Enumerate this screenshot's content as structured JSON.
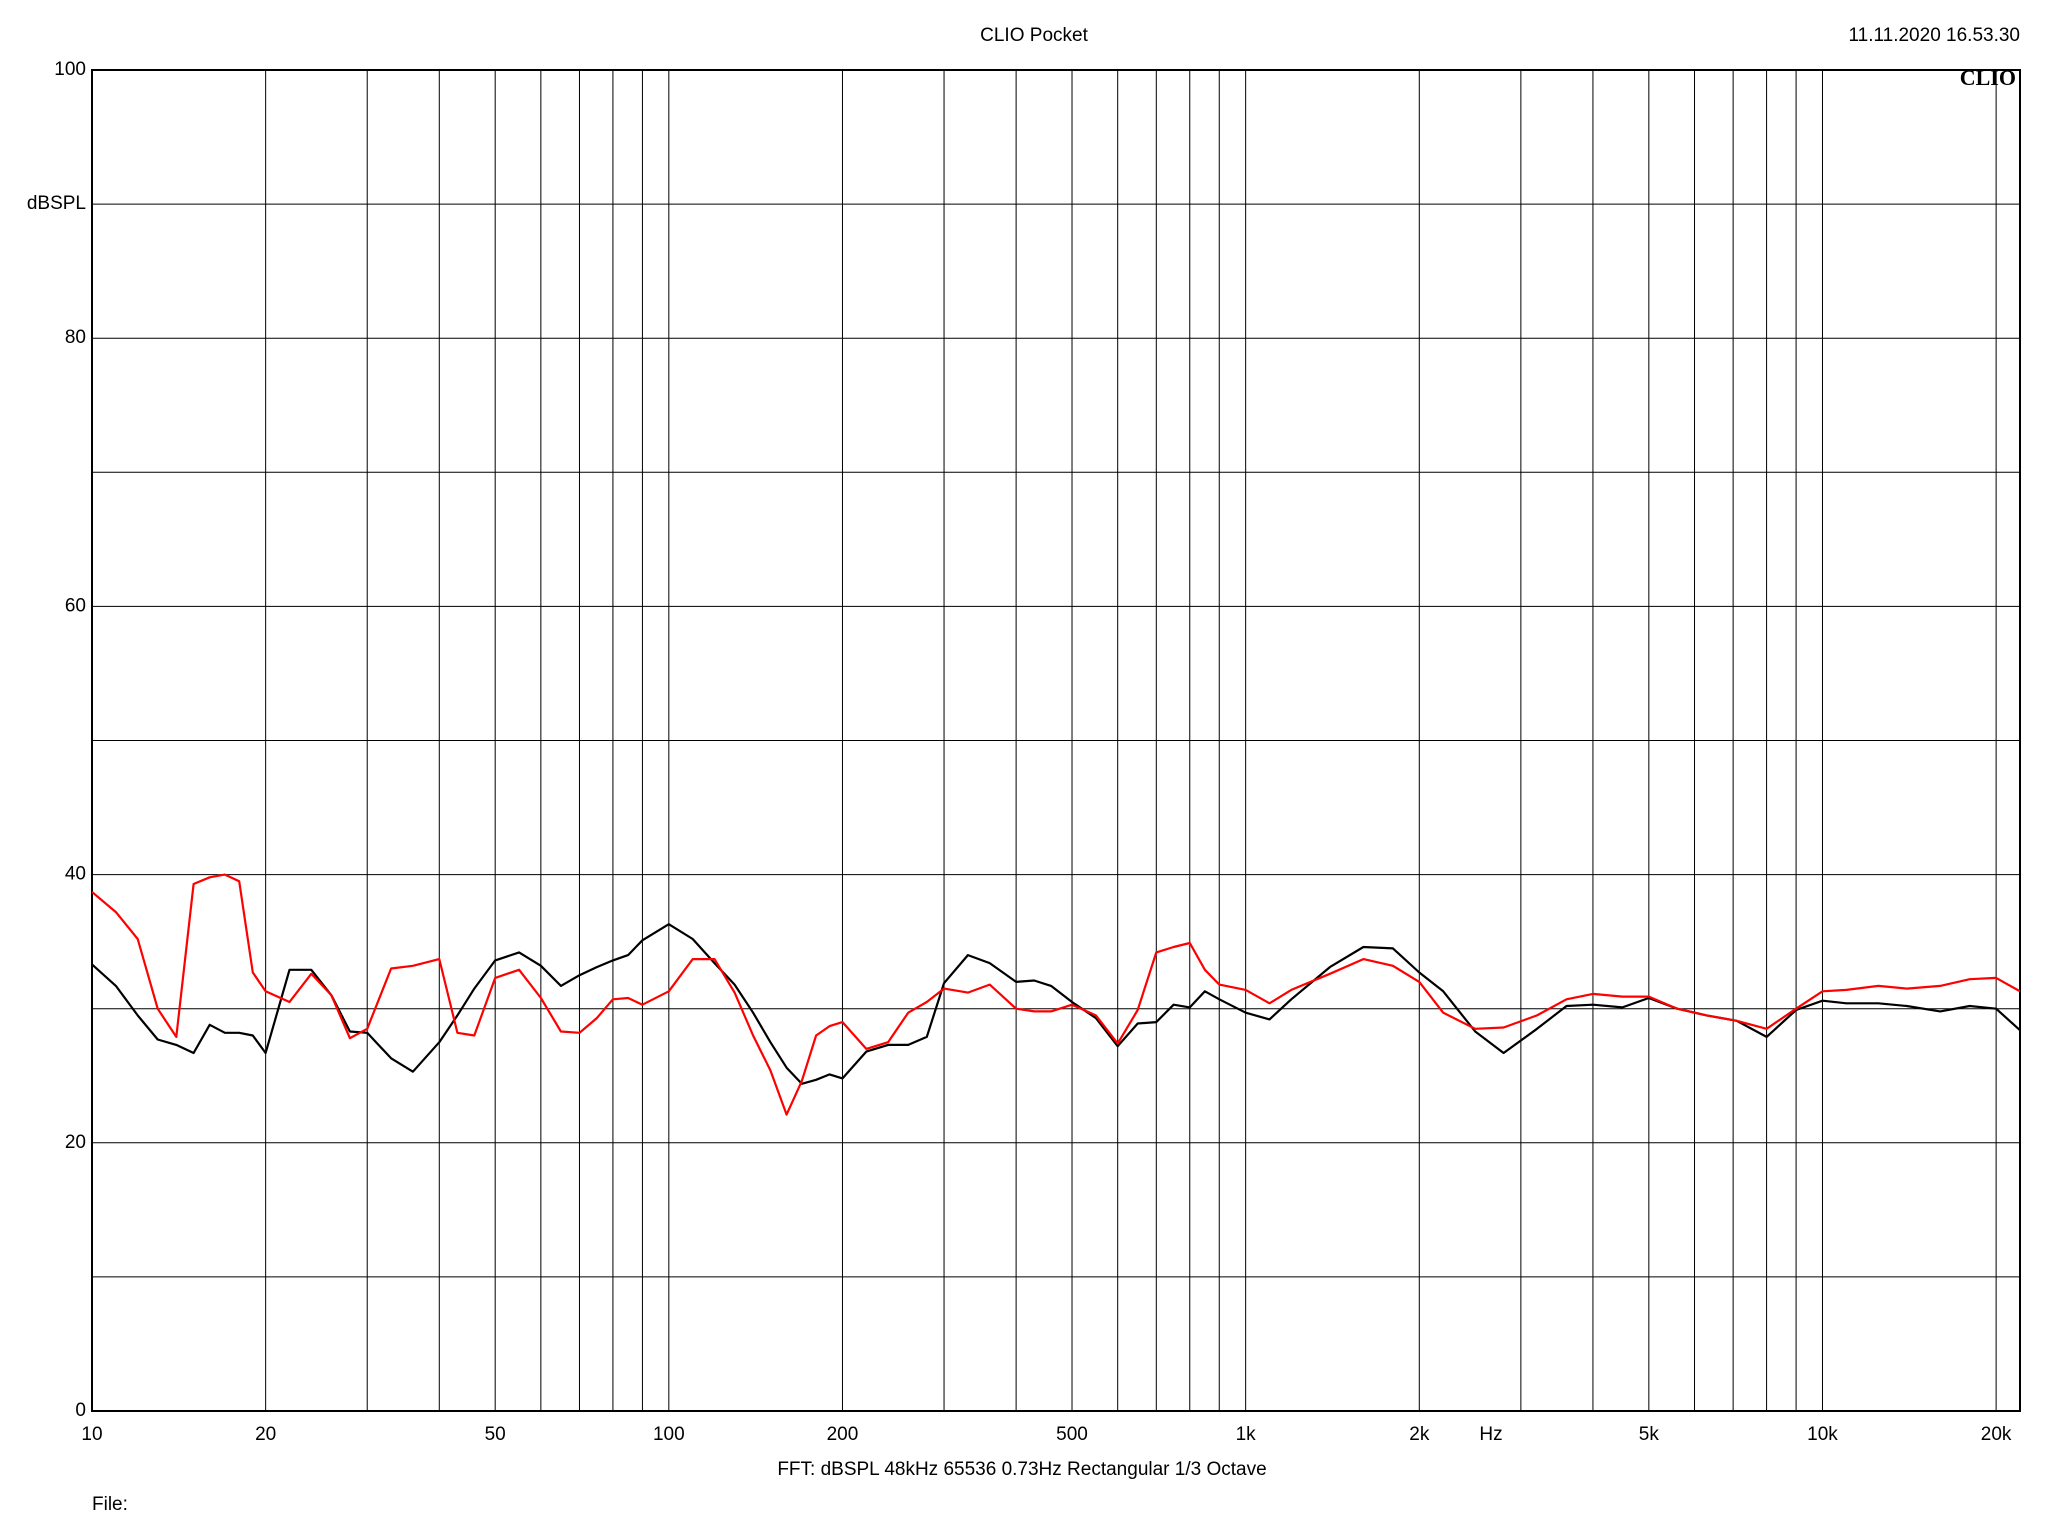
{
  "chart_data": {
    "type": "line",
    "title": "CLIO Pocket",
    "timestamp": "11.11.2020 16.53.30",
    "logo": "CLIO",
    "y_label": "dBSPL",
    "x_label": "Hz",
    "footer": "FFT:  dBSPL  48kHz  65536  0.73Hz  Rectangular  1/3 Octave",
    "file_label": "File:",
    "log_x": true,
    "grid": true,
    "xlim": [
      10,
      22000
    ],
    "ylim": [
      0,
      100
    ],
    "xticks": [
      10,
      20,
      50,
      100,
      200,
      500,
      {
        "value": 1000,
        "label": "1k"
      },
      {
        "value": 2000,
        "label": "2k"
      },
      {
        "value": 5000,
        "label": "5k"
      },
      {
        "value": 10000,
        "label": "10k"
      },
      {
        "value": 20000,
        "label": "20k"
      }
    ],
    "xminor": [
      30,
      40,
      60,
      70,
      80,
      90,
      300,
      400,
      600,
      700,
      800,
      900,
      3000,
      4000,
      6000,
      7000,
      8000,
      9000
    ],
    "yticks": [
      0,
      20,
      40,
      60,
      80,
      100
    ],
    "yminor": [
      10,
      30,
      50,
      70,
      90
    ],
    "x": [
      10,
      11,
      12,
      13,
      14,
      15,
      16,
      17,
      18,
      19,
      20,
      22,
      24,
      26,
      28,
      30,
      33,
      36,
      40,
      43,
      46,
      50,
      55,
      60,
      65,
      70,
      75,
      80,
      85,
      90,
      100,
      110,
      120,
      130,
      140,
      150,
      160,
      170,
      180,
      190,
      200,
      220,
      240,
      260,
      280,
      300,
      330,
      360,
      400,
      430,
      460,
      500,
      550,
      600,
      650,
      700,
      750,
      800,
      850,
      900,
      1000,
      1100,
      1200,
      1400,
      1600,
      1800,
      2000,
      2200,
      2500,
      2800,
      3200,
      3600,
      4000,
      4500,
      5000,
      5600,
      6300,
      7100,
      8000,
      9000,
      10000,
      11000,
      12500,
      14000,
      16000,
      18000,
      20000,
      22000
    ],
    "series": [
      {
        "color": "#000000",
        "values": [
          33.3,
          31.7,
          29.5,
          27.7,
          27.3,
          26.7,
          28.8,
          28.2,
          28.2,
          28.0,
          26.7,
          32.9,
          32.9,
          31.0,
          28.3,
          28.2,
          26.3,
          25.3,
          27.5,
          29.5,
          31.5,
          33.6,
          34.2,
          33.2,
          31.7,
          32.5,
          33.1,
          33.6,
          34.0,
          35.1,
          36.3,
          35.2,
          33.4,
          31.8,
          29.7,
          27.5,
          25.6,
          24.4,
          24.7,
          25.1,
          24.8,
          26.8,
          27.3,
          27.3,
          27.9,
          31.9,
          34.0,
          33.4,
          32.0,
          32.1,
          31.7,
          30.5,
          29.3,
          27.2,
          28.9,
          29.0,
          30.3,
          30.1,
          31.3,
          30.7,
          29.7,
          29.2,
          30.7,
          33.1,
          34.6,
          34.5,
          32.7,
          31.3,
          28.3,
          26.7,
          28.5,
          30.2,
          30.3,
          30.1,
          30.8,
          30.0,
          29.5,
          29.1,
          27.9,
          29.9,
          30.6,
          30.4,
          30.4,
          30.2,
          29.8,
          30.2,
          30.0,
          28.4
        ]
      },
      {
        "color": "#ff0000",
        "values": [
          38.7,
          37.2,
          35.2,
          30.0,
          27.9,
          39.3,
          39.8,
          40.0,
          39.5,
          32.7,
          31.3,
          30.5,
          32.6,
          31.0,
          27.8,
          28.5,
          33.0,
          33.2,
          33.7,
          28.2,
          28.0,
          32.3,
          32.9,
          30.8,
          28.3,
          28.2,
          29.3,
          30.7,
          30.8,
          30.3,
          31.3,
          33.7,
          33.7,
          31.2,
          28.0,
          25.4,
          22.1,
          24.6,
          28.0,
          28.7,
          29.0,
          27.0,
          27.5,
          29.7,
          30.5,
          31.5,
          31.2,
          31.8,
          30.0,
          29.8,
          29.8,
          30.3,
          29.5,
          27.4,
          29.9,
          34.2,
          34.6,
          34.9,
          32.9,
          31.8,
          31.4,
          30.4,
          31.4,
          32.6,
          33.7,
          33.2,
          32.0,
          29.7,
          28.5,
          28.6,
          29.5,
          30.7,
          31.1,
          30.9,
          30.9,
          30.0,
          29.5,
          29.1,
          28.5,
          30.0,
          31.3,
          31.4,
          31.7,
          31.5,
          31.7,
          32.2,
          32.3,
          31.3
        ]
      }
    ]
  }
}
